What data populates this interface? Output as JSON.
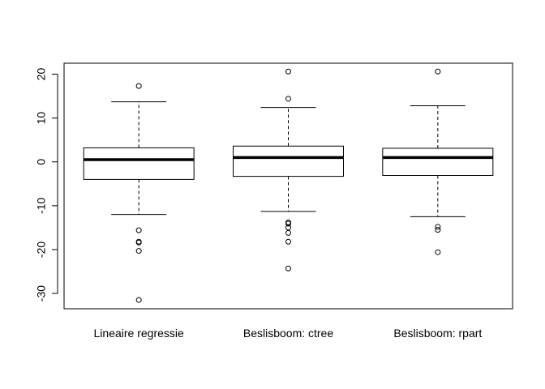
{
  "chart_data": {
    "type": "boxplot",
    "title": "",
    "xlabel": "",
    "ylabel": "",
    "ylim": [
      -33.5,
      22.5
    ],
    "yticks": [
      -30,
      -20,
      -10,
      0,
      10,
      20
    ],
    "grid": false,
    "categories": [
      "Lineaire regressie",
      "Beslisboom: ctree",
      "Beslisboom: rpart"
    ],
    "boxes": [
      {
        "label": "Lineaire regressie",
        "whisker_low": -12.0,
        "q1": -4.0,
        "median": 0.5,
        "q3": 3.2,
        "whisker_high": 13.7,
        "outliers": [
          17.3,
          -15.6,
          -18.2,
          -18.4,
          -20.3,
          -31.5
        ]
      },
      {
        "label": "Beslisboom: ctree",
        "whisker_low": -11.3,
        "q1": -3.3,
        "median": 1.0,
        "q3": 3.6,
        "whisker_high": 12.4,
        "outliers": [
          20.6,
          14.4,
          -13.8,
          -14.1,
          -15.0,
          -16.2,
          -18.2,
          -24.3
        ]
      },
      {
        "label": "Beslisboom: rpart",
        "whisker_low": -12.5,
        "q1": -3.1,
        "median": 1.0,
        "q3": 3.1,
        "whisker_high": 12.8,
        "outliers": [
          20.6,
          -14.8,
          -15.5,
          -20.6
        ]
      }
    ]
  }
}
